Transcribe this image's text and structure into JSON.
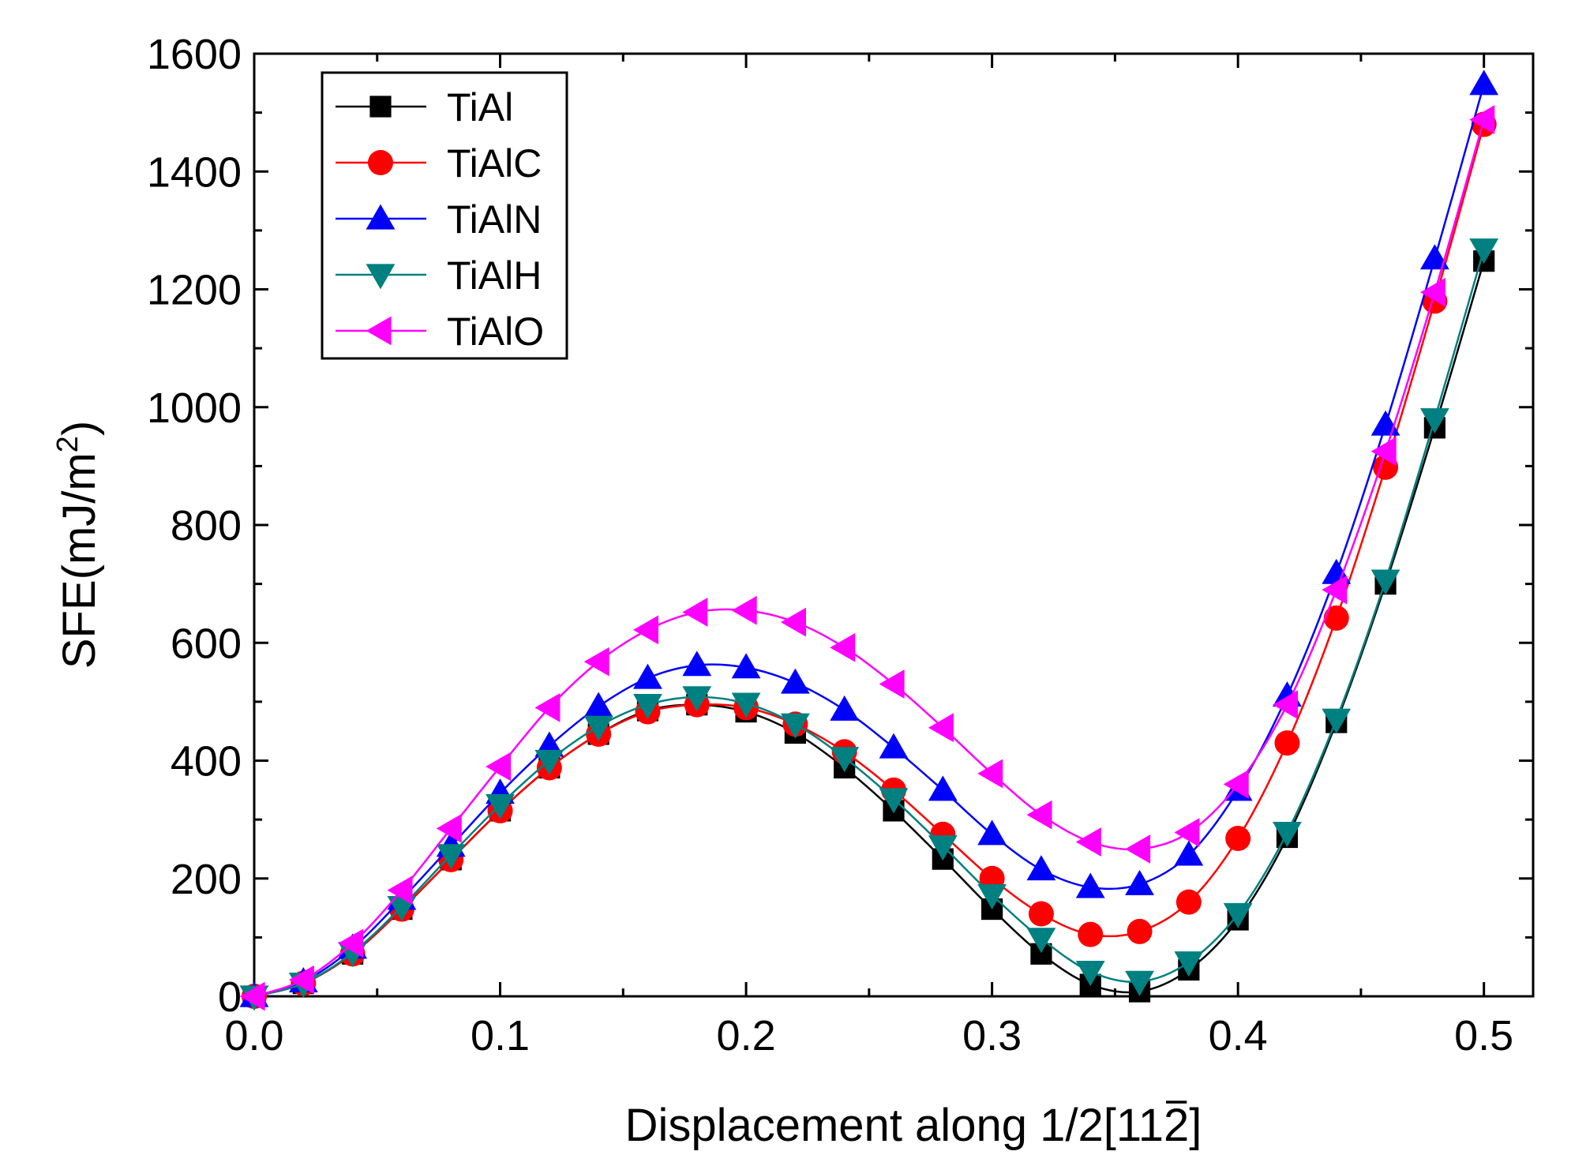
{
  "chart_data": {
    "type": "line",
    "title": "",
    "xlabel_prefix": "Displacement along 1/2[11",
    "xlabel_bar": "2",
    "xlabel_suffix": "]",
    "ylabel_main": "SFE(mJ/m",
    "ylabel_sup": "2",
    "ylabel_end": ")",
    "xlim": [
      0.0,
      0.52
    ],
    "ylim": [
      0,
      1600
    ],
    "xticks": [
      0.0,
      0.1,
      0.2,
      0.3,
      0.4,
      0.5
    ],
    "xtick_labels": [
      "0.0",
      "0.1",
      "0.2",
      "0.3",
      "0.4",
      "0.5"
    ],
    "yticks": [
      0,
      200,
      400,
      600,
      800,
      1000,
      1200,
      1400,
      1600
    ],
    "ytick_labels": [
      "0",
      "200",
      "400",
      "600",
      "800",
      "1000",
      "1200",
      "1400",
      "1600"
    ],
    "grid": false,
    "legend_position": "top-left",
    "x": [
      0.0,
      0.02,
      0.04,
      0.06,
      0.08,
      0.1,
      0.12,
      0.14,
      0.16,
      0.18,
      0.2,
      0.22,
      0.24,
      0.26,
      0.28,
      0.3,
      0.32,
      0.34,
      0.36,
      0.38,
      0.4,
      0.42,
      0.44,
      0.46,
      0.48,
      0.5
    ],
    "series": [
      {
        "name": "TiAl",
        "color": "#000000",
        "marker": "square",
        "values": [
          0,
          22,
          72,
          148,
          232,
          315,
          388,
          445,
          485,
          495,
          483,
          447,
          388,
          315,
          233,
          148,
          72,
          20,
          8,
          45,
          130,
          270,
          465,
          700,
          965,
          1248
        ]
      },
      {
        "name": "TiAlC",
        "color": "#ff0000",
        "marker": "circle",
        "values": [
          0,
          22,
          72,
          148,
          232,
          315,
          388,
          445,
          483,
          495,
          490,
          462,
          415,
          350,
          275,
          200,
          140,
          105,
          110,
          160,
          268,
          430,
          642,
          898,
          1180,
          1480
        ]
      },
      {
        "name": "TiAlN",
        "color": "#0000ff",
        "marker": "triangle-up",
        "values": [
          0,
          25,
          82,
          165,
          255,
          345,
          425,
          492,
          540,
          562,
          558,
          532,
          486,
          422,
          350,
          275,
          215,
          185,
          190,
          240,
          350,
          510,
          718,
          970,
          1252,
          1548
        ]
      },
      {
        "name": "TiAlH",
        "color": "#008080",
        "marker": "triangle-down",
        "values": [
          0,
          22,
          74,
          152,
          240,
          325,
          400,
          458,
          495,
          508,
          497,
          462,
          405,
          335,
          255,
          172,
          98,
          42,
          25,
          58,
          140,
          278,
          470,
          706,
          980,
          1268
        ]
      },
      {
        "name": "TiAlO",
        "color": "#ff00ff",
        "marker": "triangle-left",
        "values": [
          0,
          28,
          90,
          180,
          285,
          390,
          490,
          568,
          622,
          652,
          655,
          635,
          592,
          530,
          456,
          378,
          308,
          262,
          250,
          278,
          360,
          495,
          690,
          925,
          1195,
          1488
        ]
      }
    ]
  }
}
